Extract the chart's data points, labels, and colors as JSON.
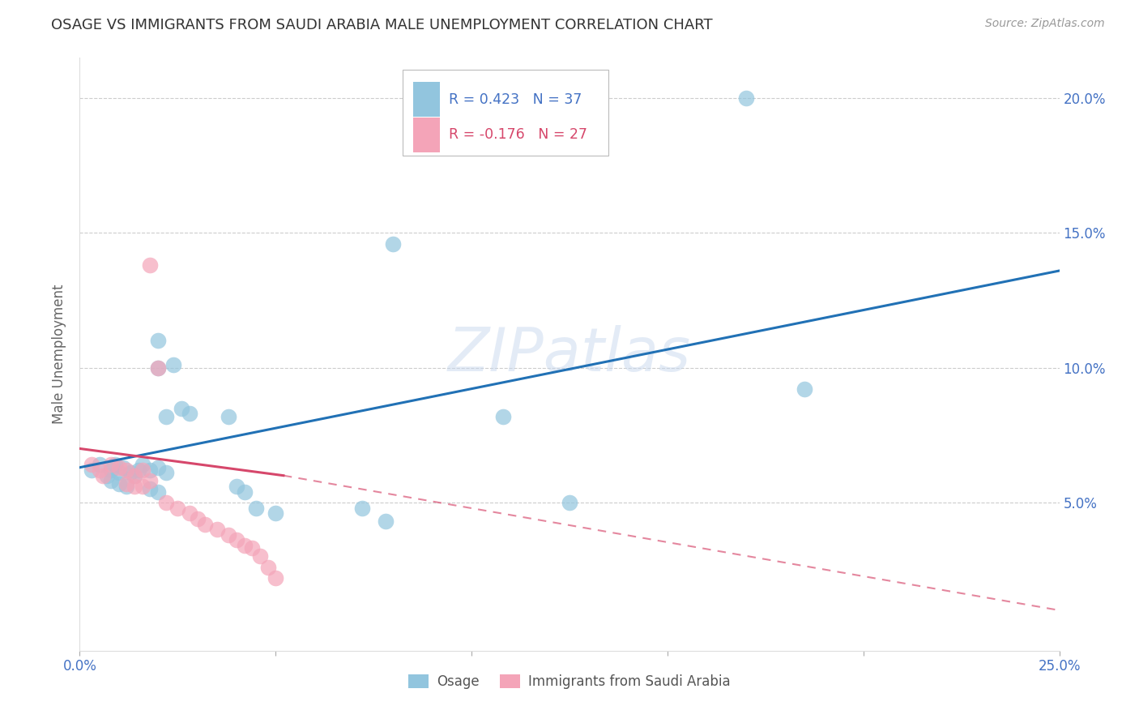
{
  "title": "OSAGE VS IMMIGRANTS FROM SAUDI ARABIA MALE UNEMPLOYMENT CORRELATION CHART",
  "source": "Source: ZipAtlas.com",
  "ylabel": "Male Unemployment",
  "xlim": [
    0.0,
    0.25
  ],
  "ylim": [
    -0.005,
    0.215
  ],
  "blue_color": "#92c5de",
  "pink_color": "#f4a4b8",
  "blue_line_color": "#2171b5",
  "pink_line_color": "#d6476b",
  "watermark": "ZIPatlas",
  "legend1_text": "R = 0.423   N = 37",
  "legend2_text": "R = -0.176   N = 27",
  "legend_label1": "Osage",
  "legend_label2": "Immigrants from Saudi Arabia",
  "blue_points": [
    [
      0.003,
      0.062
    ],
    [
      0.005,
      0.064
    ],
    [
      0.007,
      0.06
    ],
    [
      0.008,
      0.062
    ],
    [
      0.009,
      0.064
    ],
    [
      0.01,
      0.061
    ],
    [
      0.011,
      0.063
    ],
    [
      0.013,
      0.061
    ],
    [
      0.014,
      0.06
    ],
    [
      0.015,
      0.062
    ],
    [
      0.016,
      0.064
    ],
    [
      0.018,
      0.062
    ],
    [
      0.02,
      0.063
    ],
    [
      0.022,
      0.061
    ],
    [
      0.008,
      0.058
    ],
    [
      0.01,
      0.057
    ],
    [
      0.012,
      0.056
    ],
    [
      0.018,
      0.055
    ],
    [
      0.02,
      0.054
    ],
    [
      0.022,
      0.082
    ],
    [
      0.026,
      0.085
    ],
    [
      0.028,
      0.083
    ],
    [
      0.02,
      0.1
    ],
    [
      0.024,
      0.101
    ],
    [
      0.02,
      0.11
    ],
    [
      0.038,
      0.082
    ],
    [
      0.04,
      0.056
    ],
    [
      0.042,
      0.054
    ],
    [
      0.045,
      0.048
    ],
    [
      0.05,
      0.046
    ],
    [
      0.072,
      0.048
    ],
    [
      0.078,
      0.043
    ],
    [
      0.08,
      0.146
    ],
    [
      0.108,
      0.082
    ],
    [
      0.125,
      0.05
    ],
    [
      0.185,
      0.092
    ],
    [
      0.17,
      0.2
    ]
  ],
  "pink_points": [
    [
      0.003,
      0.064
    ],
    [
      0.005,
      0.062
    ],
    [
      0.006,
      0.06
    ],
    [
      0.008,
      0.064
    ],
    [
      0.01,
      0.063
    ],
    [
      0.012,
      0.062
    ],
    [
      0.014,
      0.06
    ],
    [
      0.016,
      0.062
    ],
    [
      0.012,
      0.057
    ],
    [
      0.014,
      0.056
    ],
    [
      0.016,
      0.056
    ],
    [
      0.018,
      0.058
    ],
    [
      0.02,
      0.1
    ],
    [
      0.018,
      0.138
    ],
    [
      0.022,
      0.05
    ],
    [
      0.025,
      0.048
    ],
    [
      0.028,
      0.046
    ],
    [
      0.03,
      0.044
    ],
    [
      0.032,
      0.042
    ],
    [
      0.035,
      0.04
    ],
    [
      0.038,
      0.038
    ],
    [
      0.04,
      0.036
    ],
    [
      0.042,
      0.034
    ],
    [
      0.044,
      0.033
    ],
    [
      0.046,
      0.03
    ],
    [
      0.048,
      0.026
    ],
    [
      0.05,
      0.022
    ]
  ],
  "blue_line": [
    [
      0.0,
      0.063
    ],
    [
      0.25,
      0.136
    ]
  ],
  "pink_line_solid": [
    [
      0.0,
      0.07
    ],
    [
      0.052,
      0.06
    ]
  ],
  "pink_line_dash": [
    [
      0.052,
      0.06
    ],
    [
      0.25,
      0.01
    ]
  ],
  "xtick_positions": [
    0.0,
    0.05,
    0.1,
    0.15,
    0.2,
    0.25
  ],
  "xtick_labels": [
    "0.0%",
    "",
    "",
    "",
    "",
    "25.0%"
  ],
  "ytick_positions": [
    0.05,
    0.1,
    0.15,
    0.2
  ],
  "ytick_labels_right": [
    "5.0%",
    "10.0%",
    "15.0%",
    "20.0%"
  ],
  "grid_lines": [
    0.05,
    0.1,
    0.15,
    0.2
  ],
  "tick_color": "#4472c4",
  "grid_color": "#cccccc"
}
